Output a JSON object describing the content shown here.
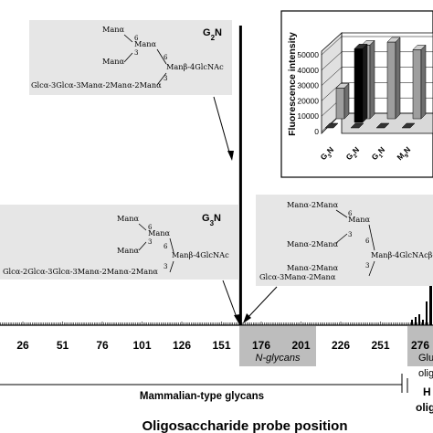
{
  "chart_data": [
    {
      "type": "bar",
      "xlabel": "Oligosaccharide probe position",
      "x_ticks": [
        "26",
        "51",
        "76",
        "101",
        "126",
        "151",
        "176",
        "201",
        "226",
        "251",
        "276"
      ],
      "x": [
        163
      ],
      "values": [
        1
      ],
      "highlight_region": {
        "label": "N-glycans",
        "from": 164,
        "to": 211
      },
      "partial_label_top": "Glu",
      "partial_label_bottom": "olig",
      "bracket_label": "Mammalian-type glycans",
      "second_bracket_label_top": "H",
      "second_bracket_label_bottom": "olig",
      "callouts": [
        {
          "label": "G2N",
          "main": "G",
          "sub": "2",
          "suffix": "N",
          "lines": [
            "Manα",
            "6",
            "Manα",
            "Manα",
            "3",
            "6",
            "Manβ-4GlcNAc",
            "3",
            "Glcα-3Glcα-3Manα-2Manα-2Manα"
          ]
        },
        {
          "label": "G3N",
          "main": "G",
          "sub": "3",
          "suffix": "N",
          "lines": [
            "Manα",
            "6",
            "Manα",
            "Manα",
            "3",
            "6",
            "Manβ-4GlcNAc",
            "3",
            "Glcα-2Glcα-3Glcα-3Manα-2Manα-2Manα"
          ]
        },
        {
          "label": "",
          "lines": [
            "Manα-2Manα",
            "6",
            "Manα",
            "Manα-2Manα",
            "3",
            "6",
            "Manβ-4GlcNAcβ-",
            "Manα-2Manα",
            "3",
            "Glcα-3Manα-2Manα"
          ]
        }
      ],
      "color_bars": "#000000",
      "color_highlight": "#bdbdbd"
    },
    {
      "type": "bar",
      "ylabel": "Fluorescence intensity",
      "ylim": [
        0,
        50000
      ],
      "y_ticks": [
        "0",
        "10000",
        "20000",
        "30000",
        "40000",
        "50000"
      ],
      "categories": [
        "G3N",
        "G2N",
        "G1N",
        "M9N"
      ],
      "category_labels": [
        {
          "main": "G",
          "sub": "3",
          "suffix": "N"
        },
        {
          "main": "G",
          "sub": "2",
          "suffix": "N"
        },
        {
          "main": "G",
          "sub": "1",
          "suffix": "N"
        },
        {
          "main": "M",
          "sub": "9",
          "suffix": "N"
        }
      ],
      "series": [
        {
          "values": [
            0,
            0,
            0,
            0
          ],
          "color": "#333333"
        },
        {
          "values": [
            20000,
            48000,
            50000,
            45000
          ],
          "color": "#9e9e9e"
        }
      ],
      "black_bar": {
        "category": "G2N",
        "value": 48000,
        "color": "#000000"
      }
    }
  ]
}
